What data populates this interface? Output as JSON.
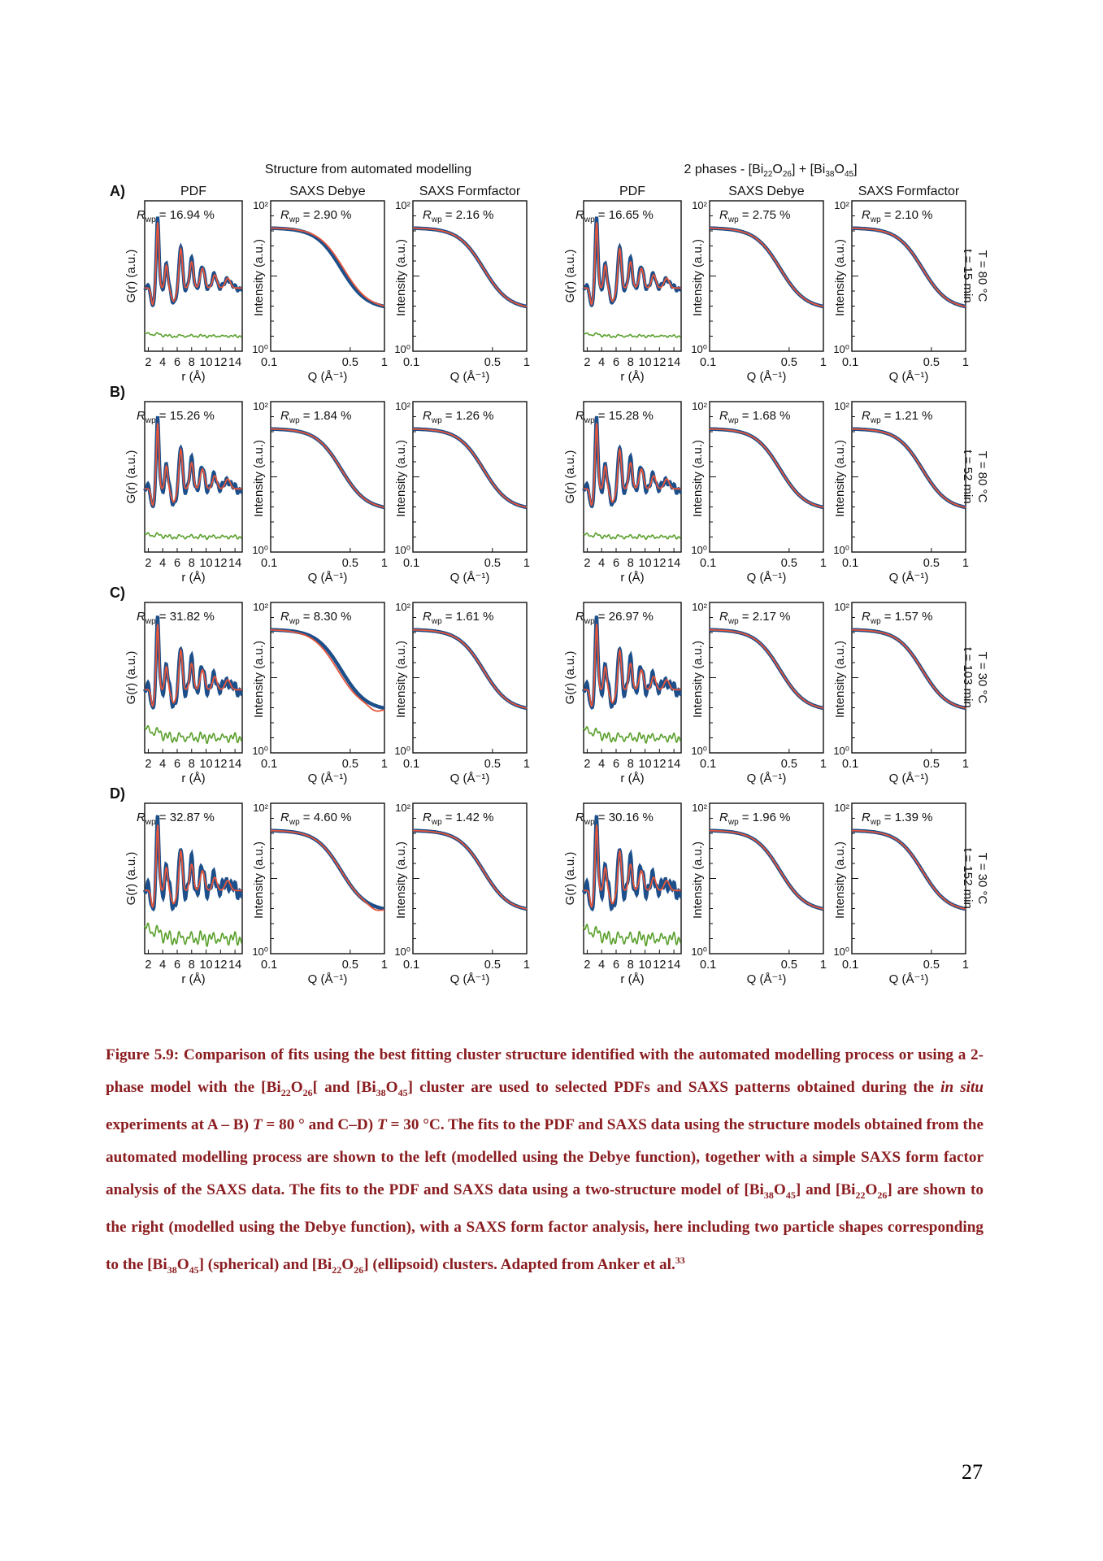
{
  "figure": {
    "header_left": "Structure from automated modelling",
    "header_right": "2 phases - [Bi22O26] + [Bi38O45]",
    "panel_titles": [
      "PDF",
      "SAXS Debye",
      "SAXS Formfactor"
    ],
    "ylabels": {
      "pdf": "G(r) (a.u.)",
      "saxs": "Intensity (a.u.)"
    },
    "xlabels": {
      "pdf": "r (Å)",
      "saxs": "Q (Å⁻¹)"
    },
    "xticks": {
      "pdf": [
        "2",
        "4",
        "6",
        "8",
        "10",
        "12",
        "14"
      ],
      "saxs": [
        "0.1",
        "0.5",
        "1"
      ]
    },
    "yticks_saxs": [
      "10²",
      "10⁰"
    ],
    "colors": {
      "observed": "#1d4f8a",
      "calculated": "#e8553a",
      "difference": "#5aa02c"
    },
    "rows": [
      {
        "label": "A)",
        "condition": [
          "T = 80 °C",
          "t = 15 min"
        ],
        "rwp": [
          "16.94 %",
          "2.90 %",
          "2.16 %",
          "16.65 %",
          "2.75 %",
          "2.10 %"
        ]
      },
      {
        "label": "B)",
        "condition": [
          "T = 80 °C",
          "t = 52 min"
        ],
        "rwp": [
          "15.26 %",
          "1.84 %",
          "1.26 %",
          "15.28 %",
          "1.68 %",
          "1.21 %"
        ]
      },
      {
        "label": "C)",
        "condition": [
          "T = 30 °C",
          "t = 103 min"
        ],
        "rwp": [
          "31.82 %",
          "8.30 %",
          "1.61 %",
          "26.97 %",
          "2.17 %",
          "1.57 %"
        ]
      },
      {
        "label": "D)",
        "condition": [
          "T = 30 °C",
          "t = 152 min"
        ],
        "rwp": [
          "32.87 %",
          "4.60 %",
          "1.42 %",
          "30.16 %",
          "1.96 %",
          "1.39 %"
        ]
      }
    ]
  },
  "caption": {
    "label": "Figure 5.9:",
    "text": "Comparison of fits using the best fitting cluster structure identified with the automated modelling process or using a 2-phase model with the [Bi22O26[ and [Bi38O45] cluster are used to selected PDFs and SAXS patterns obtained during the in situ experiments at A – B) T = 80 ° and C–D) T = 30 °C. The fits to the PDF and SAXS data using the structure models obtained from the automated modelling process are shown to the left (modelled using the Debye function), together with a simple SAXS form factor analysis of the SAXS data. The fits to the PDF and SAXS data using a two-structure model of [Bi38O45] and [Bi22O26] are shown to the right (modelled using the Debye function), with a SAXS form factor analysis, here including two particle shapes corresponding to the [Bi38O45] (spherical) and [Bi22O26] (ellipsoid) clusters. Adapted from Anker et al.",
    "ref": "33"
  },
  "page_number": "27"
}
